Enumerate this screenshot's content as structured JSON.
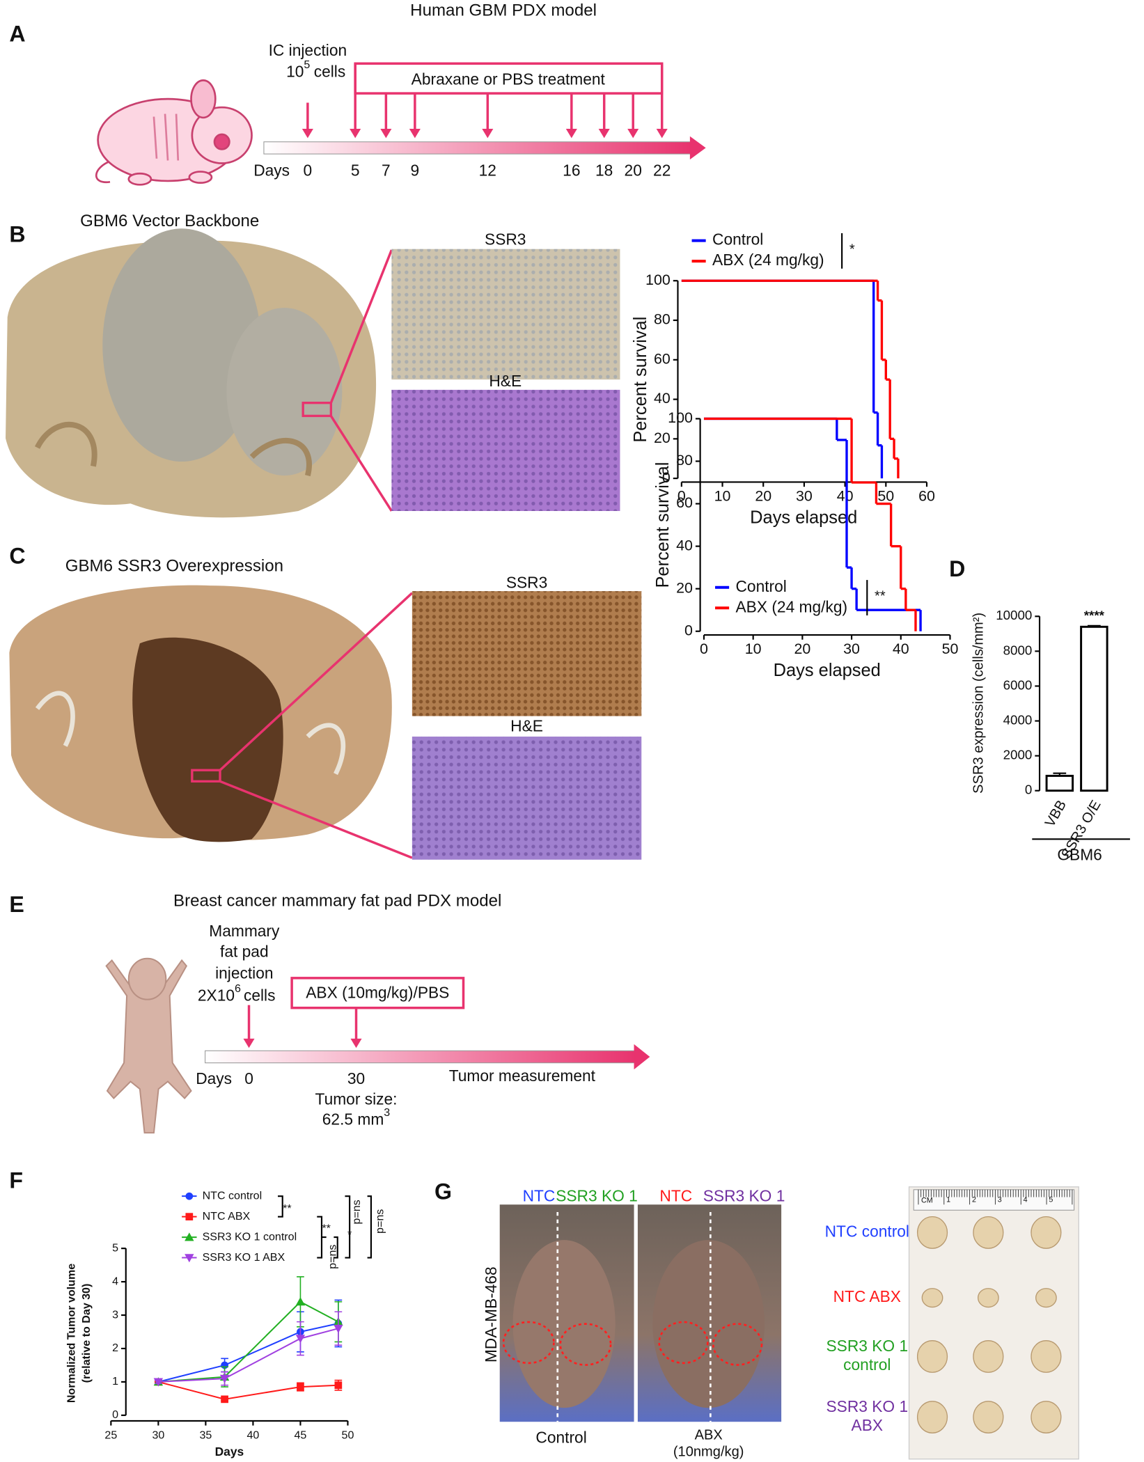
{
  "figure": {
    "panel_labels": [
      "A",
      "B",
      "C",
      "D",
      "E",
      "F",
      "G"
    ],
    "a": {
      "title": "Human GBM PDX model",
      "injection": "IC injection",
      "cells_base": "10",
      "cells_exp": "5",
      "cells_unit": "cells",
      "treatment": "Abraxane or PBS treatment",
      "days_label": "Days",
      "days": [
        0,
        5,
        7,
        9,
        12,
        16,
        18,
        20,
        22
      ]
    },
    "b": {
      "title": "GBM6 Vector Backbone",
      "stain_1": "SSR3",
      "stain_2": "H&E"
    },
    "c": {
      "title": "GBM6 SSR3 Overexpression",
      "stain_1": "SSR3",
      "stain_2": "H&E"
    },
    "e": {
      "title": "Breast cancer mammary fat pad PDX model",
      "injection": [
        "Mammary",
        "fat pad",
        "injection"
      ],
      "cells_base": "2X10",
      "cells_exp": "6",
      "cells_unit": "cells",
      "treatment": "ABX (10mg/kg)/PBS",
      "days_label": "Days",
      "days": [
        0,
        30
      ],
      "measurement": "Tumor measurement",
      "size_label": "Tumor size:",
      "size_value": "62.5 mm",
      "size_exp": "3"
    },
    "g": {
      "cell_line": "MDA-MB-468",
      "left_labels": [
        "NTC",
        "SSR3 KO 1"
      ],
      "right_labels": [
        "NTC",
        "SSR3 KO 1"
      ],
      "left_condition": "Control",
      "right_condition": "ABX",
      "right_dose": "(10nmg/kg)",
      "ruler_unit": "CM",
      "ruler": [
        1,
        2,
        3,
        4,
        5
      ],
      "groups": [
        [
          "NTC control"
        ],
        [
          "NTC ABX"
        ],
        [
          "SSR3 KO 1",
          "control"
        ],
        [
          "SSR3 KO 1",
          "ABX"
        ]
      ]
    }
  },
  "chart_data": [
    {
      "type": "step",
      "xlabel": "Days elapsed",
      "ylabel": "Percent survival",
      "xlim": [
        0,
        60
      ],
      "xticks": [
        0,
        10,
        20,
        30,
        40,
        50,
        60
      ],
      "ylim": [
        0,
        100
      ],
      "yticks": [
        0,
        20,
        40,
        60,
        80,
        100
      ],
      "series": [
        {
          "name": "Control",
          "color": "#0000ff",
          "x": [
            0,
            47,
            48,
            49
          ],
          "values": [
            100,
            33.3,
            16.7,
            0
          ]
        },
        {
          "name": "ABX (24 mg/kg)",
          "color": "#ff0000",
          "x": [
            0,
            48,
            49,
            50,
            51,
            52,
            53
          ],
          "values": [
            100,
            90,
            60,
            50,
            20,
            10,
            0
          ]
        }
      ],
      "significance": "*"
    },
    {
      "type": "step",
      "xlabel": "Days elapsed",
      "ylabel": "Percent survival",
      "xlim": [
        0,
        50
      ],
      "xticks": [
        0,
        10,
        20,
        30,
        40,
        50
      ],
      "ylim": [
        0,
        100
      ],
      "yticks": [
        0,
        20,
        40,
        60,
        80,
        100
      ],
      "series": [
        {
          "name": "Control",
          "color": "#0000ff",
          "x": [
            0,
            27,
            29,
            30,
            31,
            44
          ],
          "values": [
            100,
            90,
            30,
            20,
            10,
            0
          ]
        },
        {
          "name": "ABX (24 mg/kg)",
          "color": "#ff0000",
          "x": [
            0,
            30,
            35,
            38,
            40,
            41,
            43
          ],
          "values": [
            100,
            70,
            60,
            40,
            20,
            10,
            0
          ]
        }
      ],
      "significance": "**"
    },
    {
      "type": "bar",
      "ylabel": "SSR3 expression (cells/mm²)",
      "categories": [
        "VBB",
        "SSR3 O/E"
      ],
      "values": [
        850,
        9400
      ],
      "errors": [
        150,
        60
      ],
      "color": "#ffffff",
      "ylim": [
        0,
        10000
      ],
      "yticks": [
        0,
        2000,
        4000,
        6000,
        8000,
        10000
      ],
      "group_label": "GBM6",
      "significance": "****"
    },
    {
      "type": "line",
      "xlabel": "Days",
      "ylabel": [
        "Normalized Tumor volume",
        "(relative to Day 30)"
      ],
      "x": [
        30,
        37,
        45,
        49
      ],
      "xlim": [
        25,
        50
      ],
      "xticks": [
        25,
        30,
        35,
        40,
        45,
        50
      ],
      "ylim": [
        0,
        5
      ],
      "yticks": [
        0,
        1,
        2,
        3,
        4,
        5
      ],
      "series": [
        {
          "name": "NTC control",
          "color": "#1f3fff",
          "marker": "circle",
          "values": [
            1,
            1.5,
            2.5,
            2.75
          ],
          "errors": [
            0.05,
            0.2,
            0.6,
            0.7
          ]
        },
        {
          "name": "NTC ABX",
          "color": "#ff1a1a",
          "marker": "square",
          "values": [
            1,
            0.48,
            0.85,
            0.9
          ],
          "errors": [
            0.05,
            0.05,
            0.12,
            0.15
          ]
        },
        {
          "name": "SSR3 KO 1 control",
          "color": "#22b022",
          "marker": "triangle",
          "values": [
            1,
            1.15,
            3.4,
            2.8
          ],
          "errors": [
            0.05,
            0.3,
            0.75,
            0.6
          ]
        },
        {
          "name": "SSR3 KO 1 ABX",
          "color": "#a040e0",
          "marker": "triangle-down",
          "values": [
            1,
            1.1,
            2.3,
            2.6
          ],
          "errors": [
            0.05,
            0.2,
            0.5,
            0.5
          ]
        }
      ],
      "annotations": [
        "**",
        "**",
        "p=ns",
        "*",
        "p=ns",
        "p=ns"
      ]
    }
  ]
}
